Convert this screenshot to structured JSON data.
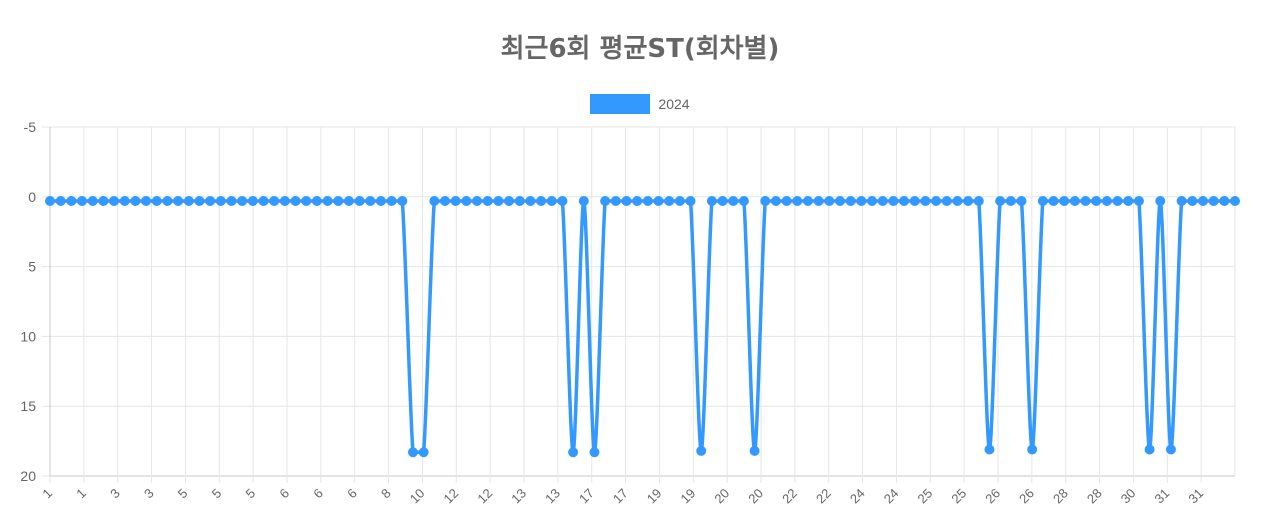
{
  "chart_data": {
    "type": "line",
    "title": "최근6회 평균ST(회차별)",
    "xlabel": "",
    "ylabel": "",
    "y_reversed": true,
    "ylim": [
      -5,
      20
    ],
    "yticks": [
      -5,
      0,
      5,
      10,
      15,
      20
    ],
    "grid": true,
    "legend_position": "top",
    "x_tick_labels": [
      "1",
      "1",
      "3",
      "3",
      "5",
      "5",
      "5",
      "6",
      "6",
      "6",
      "8",
      "10",
      "12",
      "12",
      "13",
      "13",
      "17",
      "17",
      "19",
      "19",
      "20",
      "20",
      "22",
      "22",
      "24",
      "24",
      "25",
      "25",
      "26",
      "26",
      "28",
      "28",
      "30",
      "31",
      "31"
    ],
    "series": [
      {
        "name": "2024",
        "color": "#3399ff",
        "values": [
          0.3,
          0.3,
          0.3,
          0.3,
          0.3,
          0.3,
          0.3,
          0.3,
          0.3,
          0.3,
          0.3,
          0.3,
          0.3,
          0.3,
          0.3,
          0.3,
          0.3,
          0.3,
          0.3,
          0.3,
          0.3,
          0.3,
          0.3,
          0.3,
          0.3,
          0.3,
          0.3,
          0.3,
          0.3,
          0.3,
          0.3,
          0.3,
          0.3,
          0.3,
          18.3,
          18.3,
          0.3,
          0.3,
          0.3,
          0.3,
          0.3,
          0.3,
          0.3,
          0.3,
          0.3,
          0.3,
          0.3,
          0.3,
          0.3,
          18.3,
          0.3,
          18.3,
          0.3,
          0.3,
          0.3,
          0.3,
          0.3,
          0.3,
          0.3,
          0.3,
          0.3,
          18.2,
          0.3,
          0.3,
          0.3,
          0.3,
          18.2,
          0.3,
          0.3,
          0.3,
          0.3,
          0.3,
          0.3,
          0.3,
          0.3,
          0.3,
          0.3,
          0.3,
          0.3,
          0.3,
          0.3,
          0.3,
          0.3,
          0.3,
          0.3,
          0.3,
          0.3,
          0.3,
          18.1,
          0.3,
          0.3,
          0.3,
          18.1,
          0.3,
          0.3,
          0.3,
          0.3,
          0.3,
          0.3,
          0.3,
          0.3,
          0.3,
          0.3,
          18.1,
          0.3,
          18.1,
          0.3,
          0.3,
          0.3,
          0.3,
          0.3,
          0.3
        ]
      }
    ]
  }
}
